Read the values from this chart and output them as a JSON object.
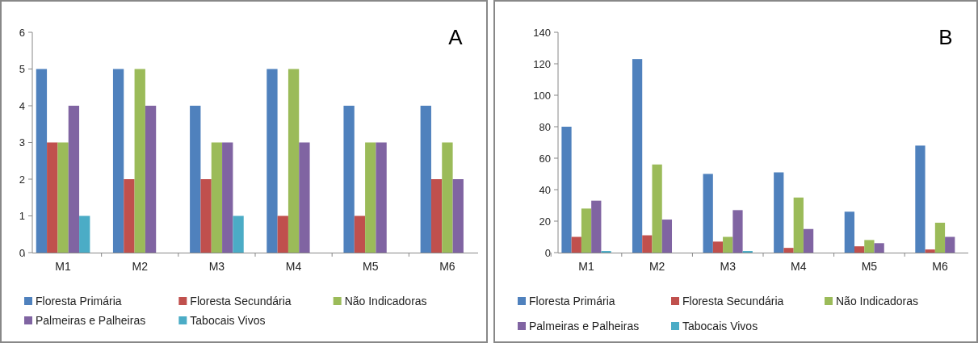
{
  "chart_data": [
    {
      "type": "bar",
      "annotations": [
        "A"
      ],
      "categories": [
        "M1",
        "M2",
        "M3",
        "M4",
        "M5",
        "M6"
      ],
      "ylim": [
        0,
        6
      ],
      "yticks": [
        0,
        1,
        2,
        3,
        4,
        5,
        6
      ],
      "grid": false,
      "legend": "bottom",
      "series": [
        {
          "name": "Floresta Primária",
          "color": "#4f81bd",
          "values": [
            5,
            5,
            4,
            5,
            4,
            4
          ]
        },
        {
          "name": "Floresta Secundária",
          "color": "#c0504d",
          "values": [
            3,
            2,
            2,
            1,
            1,
            2
          ]
        },
        {
          "name": "Não Indicadoras",
          "color": "#9bbb59",
          "values": [
            3,
            5,
            3,
            5,
            3,
            3
          ]
        },
        {
          "name": "Palmeiras e Palheiras",
          "color": "#8064a2",
          "values": [
            4,
            4,
            3,
            3,
            3,
            2
          ]
        },
        {
          "name": "Tabocais Vivos",
          "color": "#4bacc6",
          "values": [
            1,
            0,
            1,
            0,
            0,
            0
          ]
        }
      ]
    },
    {
      "type": "bar",
      "annotations": [
        "B"
      ],
      "categories": [
        "M1",
        "M2",
        "M3",
        "M4",
        "M5",
        "M6"
      ],
      "ylim": [
        0,
        140
      ],
      "yticks": [
        0,
        20,
        40,
        60,
        80,
        100,
        120,
        140
      ],
      "grid": false,
      "legend": "bottom",
      "series": [
        {
          "name": "Floresta Primária",
          "color": "#4f81bd",
          "values": [
            80,
            123,
            50,
            51,
            26,
            68
          ]
        },
        {
          "name": "Floresta Secundária",
          "color": "#c0504d",
          "values": [
            10,
            11,
            7,
            3,
            4,
            2
          ]
        },
        {
          "name": "Não Indicadoras",
          "color": "#9bbb59",
          "values": [
            28,
            56,
            10,
            35,
            8,
            19
          ]
        },
        {
          "name": "Palmeiras e Palheiras",
          "color": "#8064a2",
          "values": [
            33,
            21,
            27,
            15,
            6,
            10
          ]
        },
        {
          "name": "Tabocais Vivos",
          "color": "#4bacc6",
          "values": [
            1,
            0,
            1,
            0,
            0,
            0
          ]
        }
      ]
    }
  ]
}
